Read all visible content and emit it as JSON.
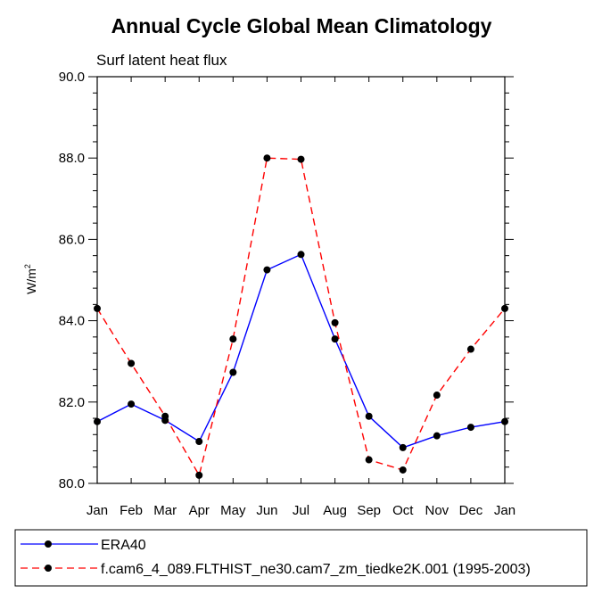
{
  "chart_data": {
    "type": "line",
    "title": "Annual Cycle Global Mean Climatology",
    "subtitle": "Surf latent heat flux",
    "xlabel": "",
    "ylabel": "W/m",
    "ylabel_superscript": "2",
    "categories": [
      "Jan",
      "Feb",
      "Mar",
      "Apr",
      "May",
      "Jun",
      "Jul",
      "Aug",
      "Sep",
      "Oct",
      "Nov",
      "Dec",
      "Jan"
    ],
    "ylim": [
      80.0,
      90.0
    ],
    "yticks": [
      80.0,
      82.0,
      84.0,
      86.0,
      88.0,
      90.0
    ],
    "ytick_labels": [
      "80.0",
      "82.0",
      "84.0",
      "86.0",
      "88.0",
      "90.0"
    ],
    "series": [
      {
        "name": "ERA40",
        "color": "#0000ff",
        "style": "solid",
        "values": [
          81.52,
          81.95,
          81.55,
          81.03,
          82.73,
          85.25,
          85.63,
          83.55,
          81.65,
          80.88,
          81.17,
          81.38,
          81.52
        ]
      },
      {
        "name": "f.cam6_4_089.FLTHIST_ne30.cam7_zm_tiedke2K.001 (1995-2003)",
        "color": "#ff0000",
        "style": "dashed",
        "values": [
          84.3,
          82.95,
          81.65,
          80.2,
          83.55,
          88.0,
          87.97,
          83.95,
          80.58,
          80.33,
          82.17,
          83.3,
          84.3
        ]
      }
    ],
    "grid": false,
    "legend_position": "bottom"
  }
}
